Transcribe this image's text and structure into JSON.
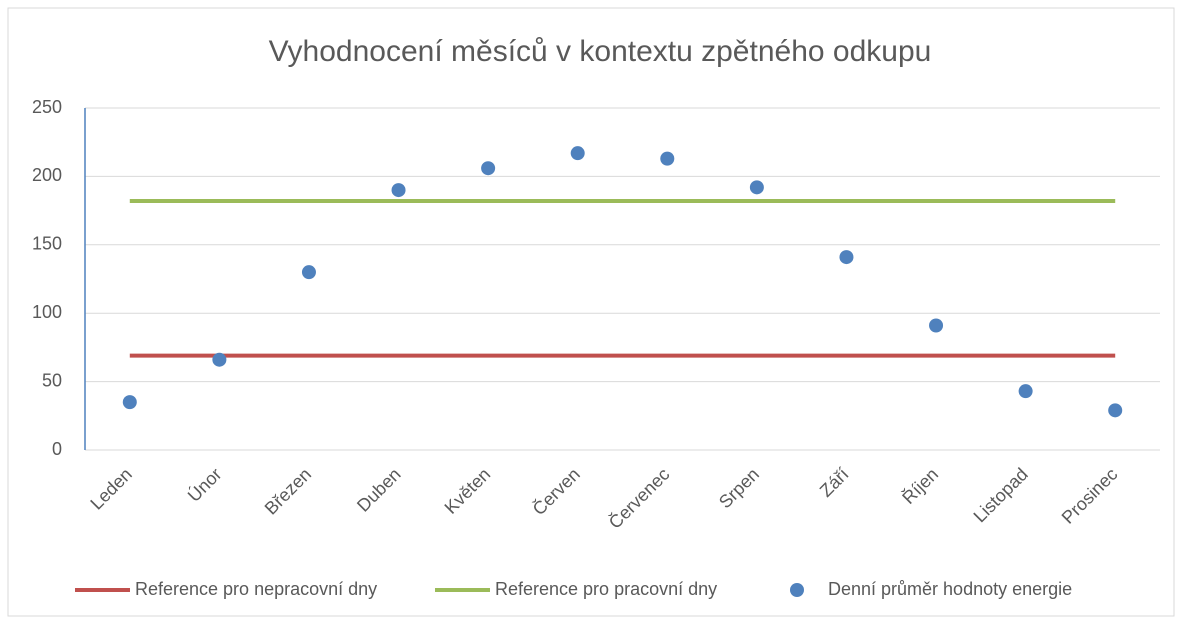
{
  "chart_data": {
    "type": "line",
    "title": "Vyhodnocení měsíců v kontextu zpětného odkupu",
    "categories": [
      "Leden",
      "Únor",
      "Březen",
      "Duben",
      "Květen",
      "Červen",
      "Červenec",
      "Srpen",
      "Září",
      "Říjen",
      "Listopad",
      "Prosinec"
    ],
    "series": [
      {
        "name": "Reference pro nepracovní dny",
        "color": "#c0504d",
        "style": "line",
        "values": [
          69,
          69,
          69,
          69,
          69,
          69,
          69,
          69,
          69,
          69,
          69,
          69
        ]
      },
      {
        "name": "Reference pro pracovní dny",
        "color": "#9bbb59",
        "style": "line",
        "values": [
          182,
          182,
          182,
          182,
          182,
          182,
          182,
          182,
          182,
          182,
          182,
          182
        ]
      },
      {
        "name": "Denní průměr hodnoty energie",
        "color": "#4f81bd",
        "style": "marker",
        "values": [
          35,
          66,
          130,
          190,
          206,
          217,
          213,
          192,
          141,
          91,
          43,
          29
        ]
      }
    ],
    "ylim": [
      0,
      250
    ],
    "yticks": [
      0,
      50,
      100,
      150,
      200,
      250
    ],
    "grid": true,
    "legend": "bottom"
  }
}
